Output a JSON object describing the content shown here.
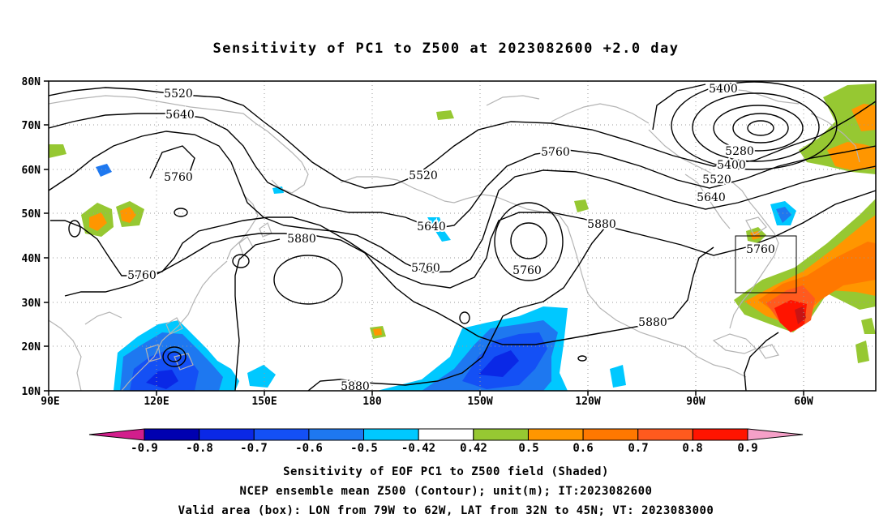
{
  "title": "Sensitivity of PC1 to Z500 at 2023082600 +2.0 day",
  "map": {
    "lat_ticks": [
      "80N",
      "70N",
      "60N",
      "50N",
      "40N",
      "30N",
      "20N",
      "10N"
    ],
    "lon_ticks": [
      "90E",
      "120E",
      "150E",
      "180",
      "150W",
      "120W",
      "90W",
      "60W"
    ],
    "contour_labels": [
      {
        "id": "c5520a",
        "text": "5520"
      },
      {
        "id": "c5640a",
        "text": "5640"
      },
      {
        "id": "c5760a",
        "text": "5760"
      },
      {
        "id": "c5760b",
        "text": "5760"
      },
      {
        "id": "c5880a",
        "text": "5880"
      },
      {
        "id": "c5520b",
        "text": "5520"
      },
      {
        "id": "c5640b",
        "text": "5640"
      },
      {
        "id": "c5760c",
        "text": "5760"
      },
      {
        "id": "c5760d",
        "text": "5760"
      },
      {
        "id": "c5760e",
        "text": "5760"
      },
      {
        "id": "c5880b",
        "text": "5880"
      },
      {
        "id": "c5400a",
        "text": "5400"
      },
      {
        "id": "c5280",
        "text": "5280"
      },
      {
        "id": "c5400b",
        "text": "5400"
      },
      {
        "id": "c5520c",
        "text": "5520"
      },
      {
        "id": "c5640c",
        "text": "5640"
      },
      {
        "id": "c5760f",
        "text": "5760"
      },
      {
        "id": "c5880c",
        "text": "5880"
      },
      {
        "id": "c5880d",
        "text": "5880"
      }
    ]
  },
  "colorbar": {
    "labels": [
      "-0.9",
      "-0.8",
      "-0.7",
      "-0.6",
      "-0.5",
      "-0.42",
      "0.42",
      "0.5",
      "0.6",
      "0.7",
      "0.8",
      "0.9"
    ],
    "colors": [
      "#0000b0",
      "#0a28e6",
      "#1450f5",
      "#1e78f0",
      "#00c8ff",
      "#ffffff",
      "#96c832",
      "#ff9600",
      "#ff7800",
      "#ff5a1e",
      "#ff1400"
    ],
    "low_extend_color": "#d21e8c",
    "high_extend_color": "#f5a0c8"
  },
  "captions": {
    "line1": "Sensitivity of EOF PC1 to Z500 field (Shaded)",
    "line2": "NCEP ensemble mean Z500 (Contour); unit(m); IT:2023082600",
    "line3": "Valid area (box): LON from 79W to 62W, LAT from 32N to 45N; VT: 2023083000"
  }
}
